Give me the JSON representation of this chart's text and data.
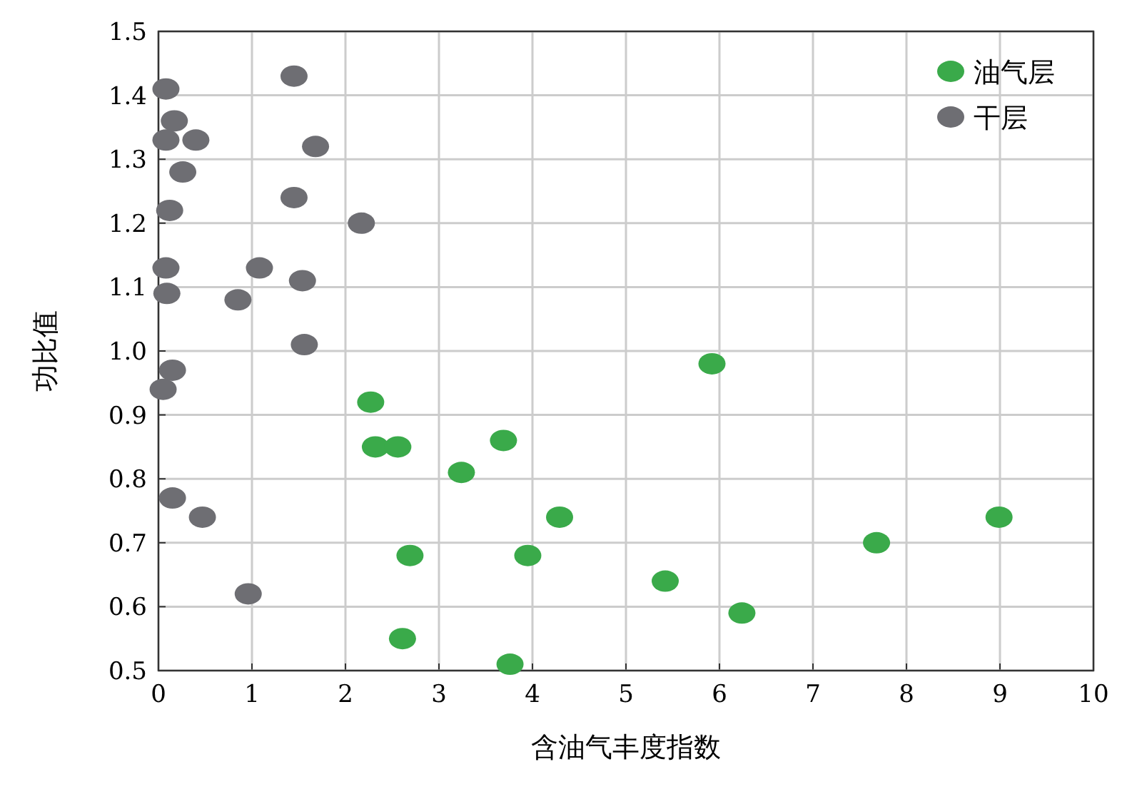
{
  "chart_data": {
    "type": "scatter",
    "xlabel": "含油气丰度指数",
    "ylabel": "功比值",
    "xlim": [
      0,
      10
    ],
    "ylim": [
      0.5,
      1.5
    ],
    "xticks": [
      0,
      1,
      2,
      3,
      4,
      5,
      6,
      7,
      8,
      9,
      10
    ],
    "yticks": [
      0.5,
      0.6,
      0.7,
      0.8,
      0.9,
      {
        "value": 1,
        "label": "1.0"
      },
      1.1,
      1.2,
      1.3,
      1.4,
      1.5
    ],
    "grid": true,
    "legend": "top right",
    "marker": "circle",
    "series": [
      {
        "name": "油气层",
        "color": "#3aaa4a",
        "x": [
          2.27,
          2.32,
          2.56,
          3.24,
          3.69,
          4.29,
          3.95,
          2.69,
          2.61,
          3.76,
          5.42,
          6.24,
          5.92,
          7.68,
          8.99
        ],
        "values": [
          0.92,
          0.85,
          0.85,
          0.81,
          0.86,
          0.74,
          0.68,
          0.68,
          0.55,
          0.51,
          0.64,
          0.59,
          0.98,
          0.7,
          0.74
        ]
      },
      {
        "name": "干层",
        "color": "#6e6e73",
        "x": [
          0.08,
          1.45,
          0.17,
          0.08,
          0.4,
          1.68,
          0.26,
          1.45,
          0.12,
          2.17,
          0.08,
          1.08,
          1.54,
          0.09,
          0.85,
          1.56,
          0.15,
          0.05,
          0.15,
          0.47,
          0.96
        ],
        "values": [
          1.41,
          1.43,
          1.36,
          1.33,
          1.33,
          1.32,
          1.28,
          1.24,
          1.22,
          1.2,
          1.13,
          1.13,
          1.11,
          1.09,
          1.08,
          1.01,
          0.97,
          0.94,
          0.77,
          0.74,
          0.62
        ]
      }
    ]
  }
}
